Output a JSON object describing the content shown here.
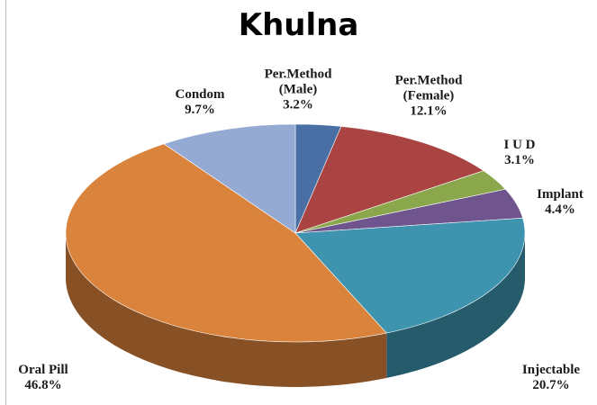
{
  "chart_data": {
    "type": "pie",
    "title": "Khulna",
    "categories": [
      "Per.Method (Male)",
      "Per.Method (Female)",
      "I U D",
      "Implant",
      "Injectable",
      "Oral Pill",
      "Condom"
    ],
    "values": [
      3.2,
      12.1,
      3.1,
      4.4,
      20.7,
      46.8,
      9.7
    ],
    "value_labels": [
      "3.2%",
      "12.1%",
      "3.1%",
      "4.4%",
      "20.7%",
      "46.8%",
      "9.7%"
    ],
    "colors": [
      "#4a6fa5",
      "#a94443",
      "#8aa84b",
      "#6f548e",
      "#3e93ae",
      "#d9833c",
      "#94aad3"
    ]
  }
}
